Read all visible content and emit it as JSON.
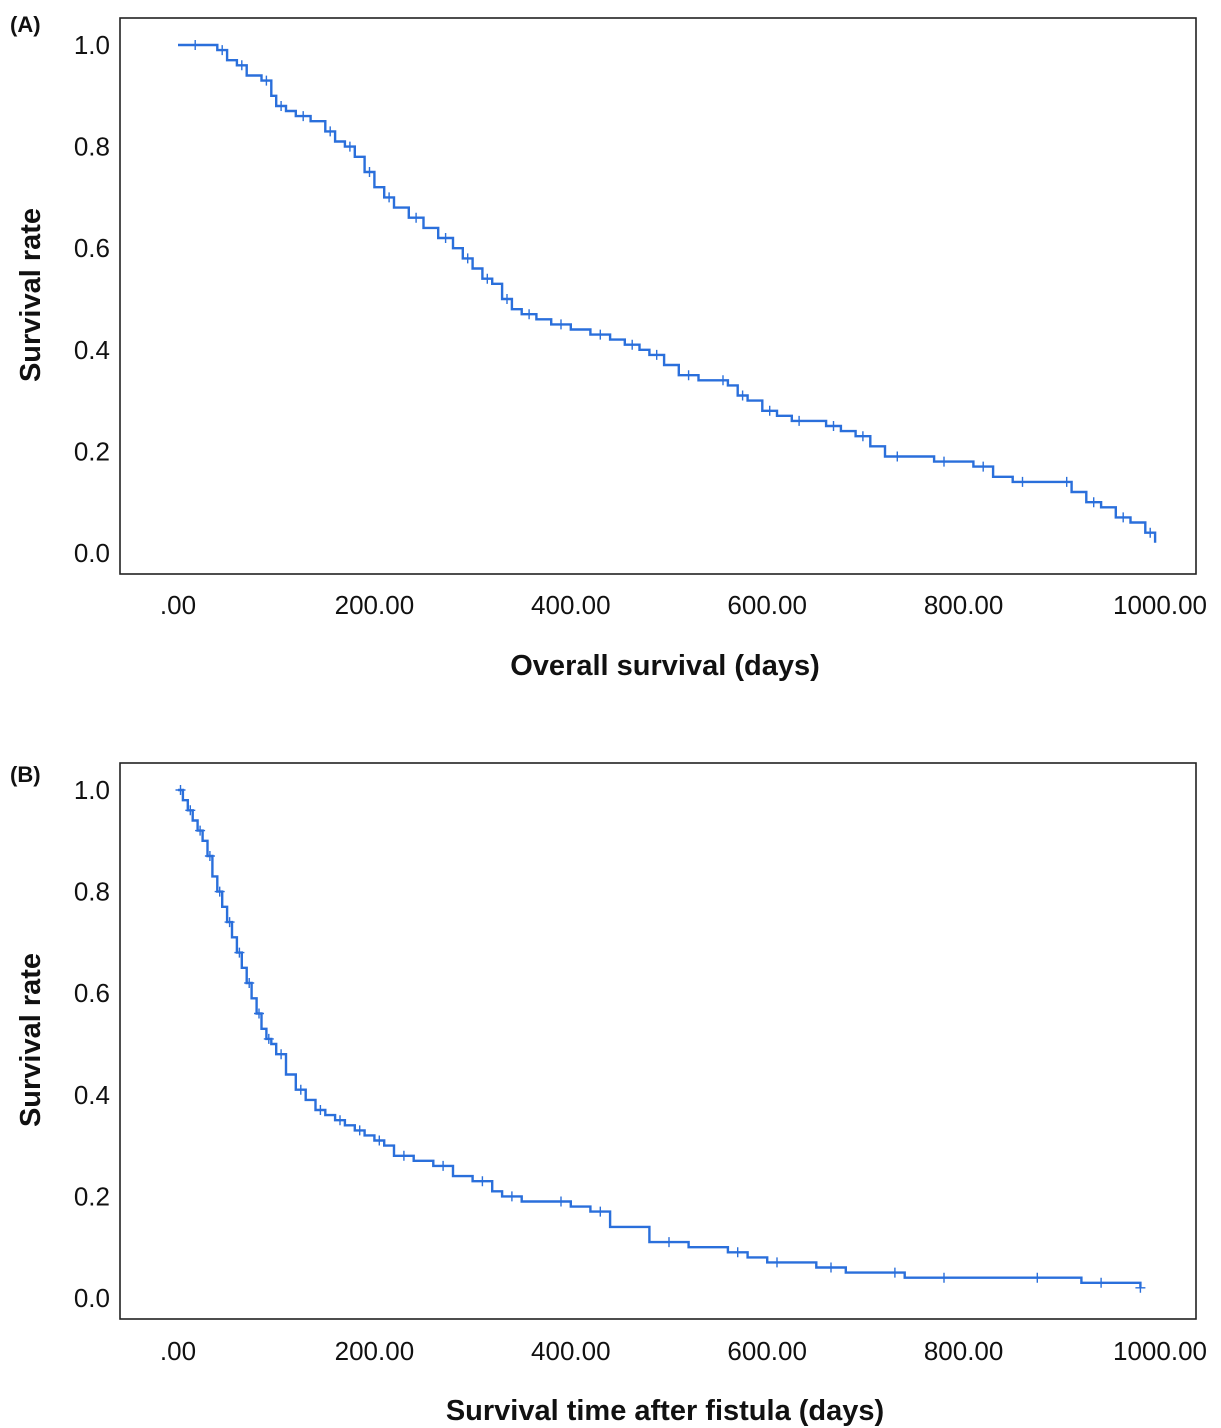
{
  "chart_data": [
    {
      "type": "line",
      "panel_label": "(A)",
      "xlabel": "Overall survival (days)",
      "ylabel": "Survival rate",
      "xlim": [
        0,
        1000
      ],
      "ylim": [
        0,
        1.0
      ],
      "x_ticks": [
        ".00",
        "200.00",
        "400.00",
        "600.00",
        "800.00",
        "1000.00"
      ],
      "y_ticks": [
        "0.0",
        "0.2",
        "0.4",
        "0.6",
        "0.8",
        "1.0"
      ],
      "line_color": "#2a6fdb",
      "step": true,
      "censor_marks": true,
      "series": [
        {
          "x": [
            0,
            35,
            40,
            50,
            60,
            70,
            85,
            95,
            100,
            110,
            120,
            135,
            150,
            160,
            170,
            180,
            190,
            200,
            210,
            220,
            235,
            250,
            265,
            280,
            290,
            300,
            310,
            320,
            330,
            340,
            350,
            365,
            380,
            400,
            420,
            440,
            455,
            470,
            480,
            495,
            510,
            530,
            550,
            560,
            570,
            580,
            595,
            610,
            625,
            640,
            660,
            675,
            690,
            705,
            720,
            745,
            770,
            790,
            810,
            830,
            850,
            870,
            900,
            910,
            925,
            940,
            955,
            970,
            985,
            995
          ],
          "y": [
            1.0,
            1.0,
            0.99,
            0.97,
            0.96,
            0.94,
            0.93,
            0.9,
            0.88,
            0.87,
            0.86,
            0.85,
            0.83,
            0.81,
            0.8,
            0.78,
            0.75,
            0.72,
            0.7,
            0.68,
            0.66,
            0.64,
            0.62,
            0.6,
            0.58,
            0.56,
            0.54,
            0.53,
            0.5,
            0.48,
            0.47,
            0.46,
            0.45,
            0.44,
            0.43,
            0.42,
            0.41,
            0.4,
            0.39,
            0.37,
            0.35,
            0.34,
            0.34,
            0.33,
            0.31,
            0.3,
            0.28,
            0.27,
            0.26,
            0.26,
            0.25,
            0.24,
            0.23,
            0.21,
            0.19,
            0.19,
            0.18,
            0.18,
            0.17,
            0.15,
            0.14,
            0.14,
            0.14,
            0.12,
            0.1,
            0.09,
            0.07,
            0.06,
            0.04,
            0.02
          ]
        }
      ]
    },
    {
      "type": "line",
      "panel_label": "(B)",
      "xlabel": "Survival time after  fistula (days)",
      "ylabel": "Survival rate",
      "xlim": [
        0,
        1000
      ],
      "ylim": [
        0,
        1.0
      ],
      "x_ticks": [
        ".00",
        "200.00",
        "400.00",
        "600.00",
        "800.00",
        "1000.00"
      ],
      "y_ticks": [
        "0.0",
        "0.2",
        "0.4",
        "0.6",
        "0.8",
        "1.0"
      ],
      "line_color": "#2a6fdb",
      "step": true,
      "censor_marks": true,
      "series": [
        {
          "x": [
            0,
            5,
            10,
            15,
            20,
            25,
            30,
            35,
            40,
            45,
            50,
            55,
            60,
            65,
            70,
            75,
            80,
            85,
            90,
            95,
            100,
            110,
            120,
            130,
            140,
            150,
            160,
            170,
            180,
            190,
            200,
            210,
            220,
            240,
            260,
            280,
            300,
            320,
            330,
            350,
            380,
            400,
            420,
            440,
            480,
            520,
            560,
            580,
            600,
            620,
            650,
            680,
            720,
            740,
            760,
            800,
            850,
            900,
            920,
            960,
            980
          ],
          "y": [
            1.0,
            0.98,
            0.96,
            0.94,
            0.92,
            0.9,
            0.87,
            0.83,
            0.8,
            0.77,
            0.74,
            0.71,
            0.68,
            0.65,
            0.62,
            0.59,
            0.56,
            0.53,
            0.51,
            0.5,
            0.48,
            0.44,
            0.41,
            0.39,
            0.37,
            0.36,
            0.35,
            0.34,
            0.33,
            0.32,
            0.31,
            0.3,
            0.28,
            0.27,
            0.26,
            0.24,
            0.23,
            0.21,
            0.2,
            0.19,
            0.19,
            0.18,
            0.17,
            0.14,
            0.11,
            0.1,
            0.09,
            0.08,
            0.07,
            0.07,
            0.06,
            0.05,
            0.05,
            0.04,
            0.04,
            0.04,
            0.04,
            0.04,
            0.03,
            0.03,
            0.02
          ]
        }
      ]
    }
  ]
}
